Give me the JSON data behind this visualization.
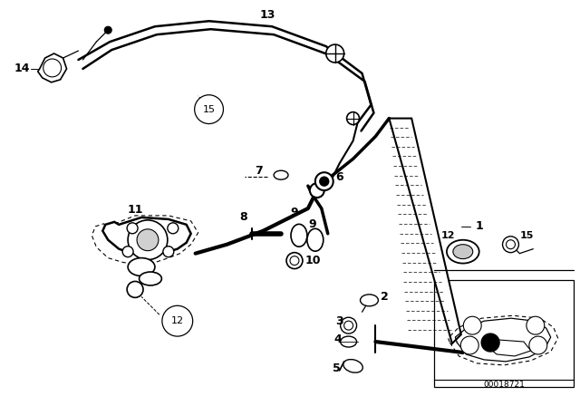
{
  "bg_color": "#ffffff",
  "line_color": "#000000",
  "fig_width": 6.4,
  "fig_height": 4.48,
  "dpi": 100,
  "diagram_id": "00018721"
}
